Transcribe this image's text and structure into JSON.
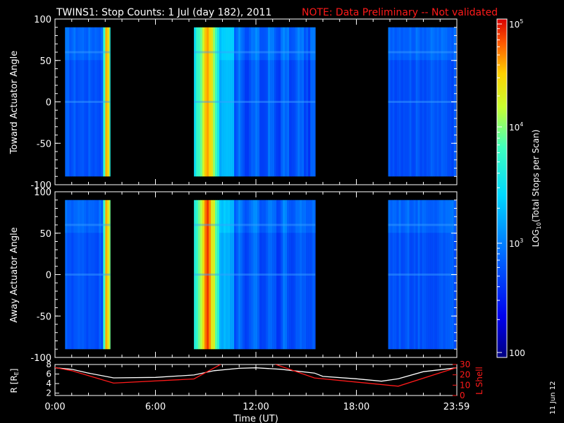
{
  "header": {
    "title": "TWINS1: Stop Counts:  1 Jul (day 182), 2011",
    "note": "NOTE: Data Preliminary -- Not validated",
    "note_color": "#ff1a1a"
  },
  "footer": {
    "date_stamp": "11 Jun 12"
  },
  "chart_data": [
    {
      "type": "heatmap",
      "ylabel": "Toward Actuator Angle",
      "ylim": [
        -100,
        100
      ],
      "yticks": [
        100,
        50,
        0,
        -50,
        -100
      ],
      "angle_range": [
        -90,
        90
      ],
      "xlim_hours": [
        0,
        24
      ],
      "data_intervals_hours": [
        [
          0.6,
          3.3
        ],
        [
          8.3,
          15.55
        ],
        [
          19.9,
          23.95
        ]
      ],
      "colorbar_label": "LOG10(Total Stops per Scan)",
      "colorbar_range": [
        100,
        100000
      ],
      "colorbar_ticks": [
        "10^5",
        "10^4",
        "10^3",
        "100"
      ],
      "typical_level_log10": 2.8,
      "enhanced_bands_hours": [
        [
          2.8,
          3.3
        ],
        [
          8.3,
          9.8
        ]
      ],
      "peak_level_log10": 4.7
    },
    {
      "type": "heatmap",
      "ylabel": "Away Actuator Angle",
      "ylim": [
        -100,
        100
      ],
      "yticks": [
        100,
        50,
        0,
        -50,
        -100
      ],
      "angle_range": [
        -90,
        90
      ],
      "xlim_hours": [
        0,
        24
      ],
      "data_intervals_hours": [
        [
          0.6,
          3.3
        ],
        [
          8.3,
          15.55
        ],
        [
          19.9,
          23.95
        ]
      ],
      "typical_level_log10": 2.8,
      "enhanced_bands_hours": [
        [
          2.8,
          3.3
        ],
        [
          8.3,
          9.8
        ]
      ],
      "peak_level_log10": 4.9
    },
    {
      "type": "line",
      "xlabel": "Time (UT)",
      "xticks": [
        "0:00",
        "6:00",
        "12:00",
        "18:00",
        "23:59"
      ],
      "xtick_hours": [
        0,
        6,
        12,
        18,
        23.98
      ],
      "y_left": {
        "label": "R [RE]",
        "ylim": [
          1.5,
          8
        ],
        "ticks": [
          2,
          4,
          6,
          8
        ]
      },
      "y_right": {
        "label": "L Shell",
        "ylim": [
          0,
          30
        ],
        "ticks": [
          0,
          10,
          20,
          30
        ]
      },
      "series": [
        {
          "name": "R [RE]",
          "axis": "left",
          "color": "#ffffff",
          "x": [
            0,
            1,
            2,
            3.5,
            6,
            8.3,
            9.5,
            11,
            12,
            13.5,
            15.5,
            16,
            18,
            19.5,
            20.5,
            22,
            23.98
          ],
          "y": [
            7.3,
            7.0,
            6.2,
            5.2,
            5.3,
            5.8,
            6.7,
            7.2,
            7.3,
            7.0,
            6.2,
            5.5,
            5.0,
            4.5,
            5.0,
            6.5,
            7.3
          ]
        },
        {
          "name": "L Shell",
          "axis": "right",
          "color": "#ff1a1a",
          "x": [
            0,
            1,
            3.5,
            8.3,
            10.0
          ],
          "y": [
            27,
            24,
            12,
            16,
            31
          ]
        },
        {
          "name": "L Shell",
          "axis": "right",
          "color": "#ff1a1a",
          "x": [
            13.0,
            15.5,
            20.5,
            23.98
          ],
          "y": [
            31,
            17,
            9,
            27
          ]
        }
      ]
    }
  ]
}
